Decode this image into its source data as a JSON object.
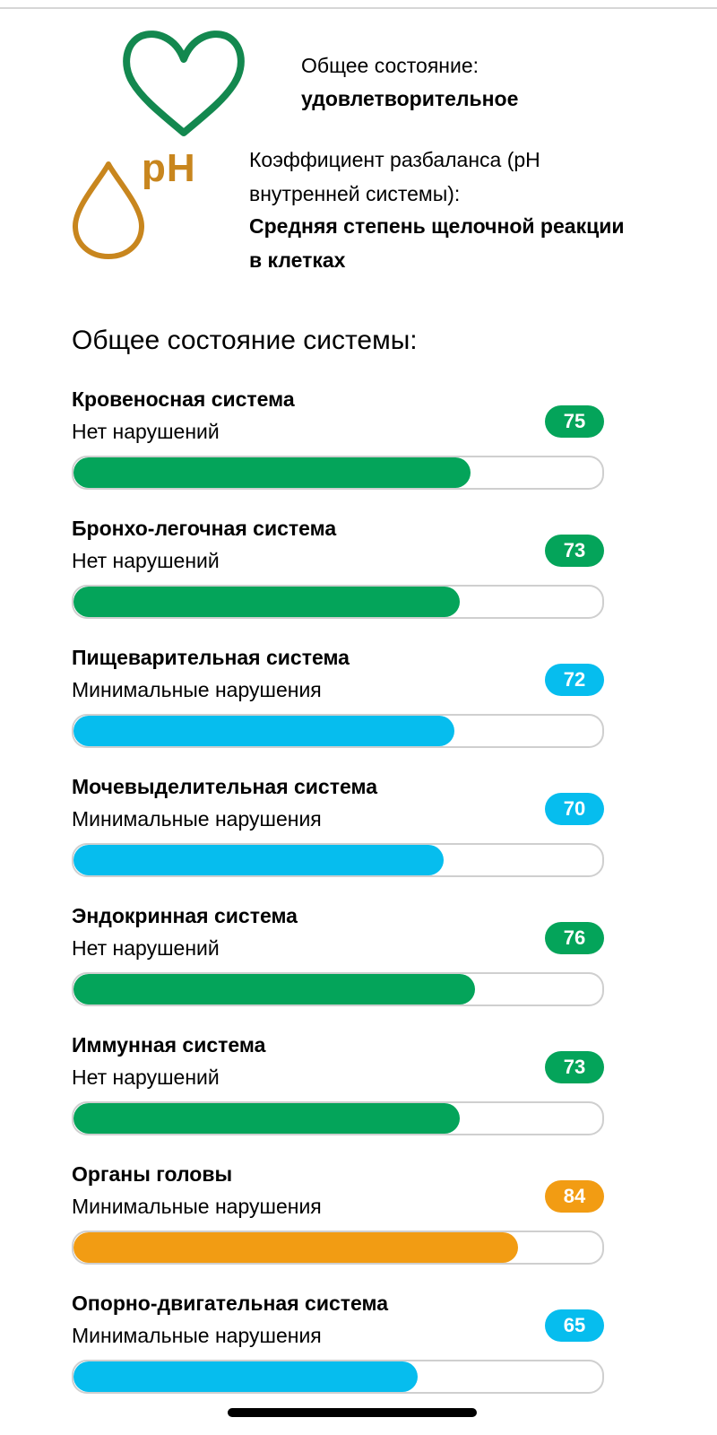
{
  "header": {
    "overall_state_label": "Общее состояние:",
    "overall_state_value": "удовлетворительное",
    "ph_label": "Коэффициент разбаланса (pH внутренней системы):",
    "ph_value": "Средняя степень щелочной реакции в клетках",
    "ph_icon_text": "pH"
  },
  "icons": {
    "heart": "heart-icon",
    "drop": "drop-icon"
  },
  "colors": {
    "heart": "#13884f",
    "drop": "#c8861e",
    "green": "#04a45a",
    "blue": "#06bdee",
    "orange": "#f29c13",
    "track_border": "#cfcfcf"
  },
  "section_title": "Общее состояние системы:",
  "systems": [
    {
      "name": "Кровеносная система",
      "status": "Нет нарушений",
      "value": "75",
      "color": "#04a45a",
      "percent": 75
    },
    {
      "name": "Бронхо-легочная система",
      "status": "Нет нарушений",
      "value": "73",
      "color": "#04a45a",
      "percent": 73
    },
    {
      "name": "Пищеварительная система",
      "status": "Минимальные нарушения",
      "value": "72",
      "color": "#06bdee",
      "percent": 72
    },
    {
      "name": "Мочевыделительная система",
      "status": "Минимальные нарушения",
      "value": "70",
      "color": "#06bdee",
      "percent": 70
    },
    {
      "name": "Эндокринная система",
      "status": "Нет нарушений",
      "value": "76",
      "color": "#04a45a",
      "percent": 76
    },
    {
      "name": "Иммунная система",
      "status": "Нет нарушений",
      "value": "73",
      "color": "#04a45a",
      "percent": 73
    },
    {
      "name": "Органы головы",
      "status": "Минимальные нарушения",
      "value": "84",
      "color": "#f29c13",
      "percent": 84
    },
    {
      "name": "Опорно-двигательная система",
      "status": "Минимальные нарушения",
      "value": "65",
      "color": "#06bdee",
      "percent": 65
    }
  ]
}
